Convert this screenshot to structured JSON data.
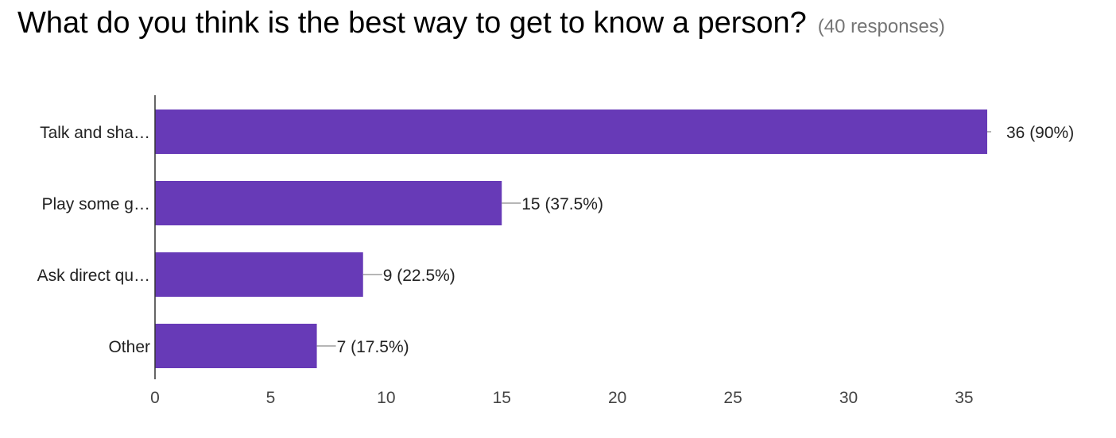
{
  "question": {
    "title": "What do you think is the best way to get to know a person?",
    "responses": "(40 responses)"
  },
  "chart_data": {
    "type": "bar",
    "orientation": "horizontal",
    "categories": [
      "Talk and sha…",
      "Play some g…",
      "Ask direct qu…",
      "Other"
    ],
    "values": [
      36,
      15,
      9,
      7
    ],
    "data_labels": [
      "36 (90%)",
      "15 (37.5%)",
      "9 (22.5%)",
      "7 (17.5%)"
    ],
    "x_ticks": [
      0,
      5,
      10,
      15,
      20,
      25,
      30,
      35
    ],
    "xlim": [
      0,
      36
    ],
    "bar_color": "#673ab7",
    "grid": false,
    "legend": "none"
  }
}
